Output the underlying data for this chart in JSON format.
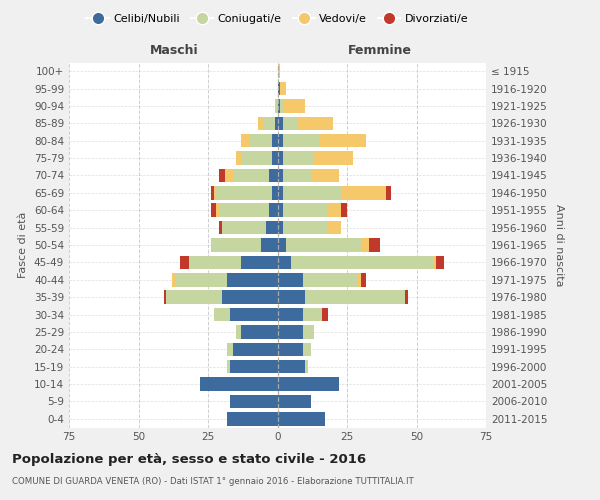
{
  "age_groups": [
    "0-4",
    "5-9",
    "10-14",
    "15-19",
    "20-24",
    "25-29",
    "30-34",
    "35-39",
    "40-44",
    "45-49",
    "50-54",
    "55-59",
    "60-64",
    "65-69",
    "70-74",
    "75-79",
    "80-84",
    "85-89",
    "90-94",
    "95-99",
    "100+"
  ],
  "birth_years": [
    "2011-2015",
    "2006-2010",
    "2001-2005",
    "1996-2000",
    "1991-1995",
    "1986-1990",
    "1981-1985",
    "1976-1980",
    "1971-1975",
    "1966-1970",
    "1961-1965",
    "1956-1960",
    "1951-1955",
    "1946-1950",
    "1941-1945",
    "1936-1940",
    "1931-1935",
    "1926-1930",
    "1921-1925",
    "1916-1920",
    "≤ 1915"
  ],
  "males": {
    "celibe": [
      18,
      17,
      28,
      17,
      16,
      13,
      17,
      20,
      18,
      13,
      6,
      4,
      3,
      2,
      3,
      2,
      2,
      1,
      0,
      0,
      0
    ],
    "coniugato": [
      0,
      0,
      0,
      1,
      2,
      2,
      6,
      20,
      19,
      19,
      18,
      16,
      18,
      20,
      13,
      11,
      8,
      4,
      1,
      0,
      0
    ],
    "vedovo": [
      0,
      0,
      0,
      0,
      0,
      0,
      0,
      0,
      1,
      0,
      0,
      0,
      1,
      1,
      3,
      2,
      3,
      2,
      0,
      0,
      0
    ],
    "divorziato": [
      0,
      0,
      0,
      0,
      0,
      0,
      0,
      1,
      0,
      3,
      0,
      1,
      2,
      1,
      2,
      0,
      0,
      0,
      0,
      0,
      0
    ]
  },
  "females": {
    "nubile": [
      17,
      12,
      22,
      10,
      9,
      9,
      9,
      10,
      9,
      5,
      3,
      2,
      2,
      2,
      2,
      2,
      2,
      2,
      1,
      1,
      0
    ],
    "coniugata": [
      0,
      0,
      0,
      1,
      3,
      4,
      7,
      36,
      20,
      51,
      27,
      16,
      16,
      21,
      10,
      11,
      13,
      5,
      1,
      0,
      0
    ],
    "vedova": [
      0,
      0,
      0,
      0,
      0,
      0,
      0,
      0,
      1,
      1,
      3,
      5,
      5,
      16,
      10,
      14,
      17,
      13,
      8,
      2,
      1
    ],
    "divorziata": [
      0,
      0,
      0,
      0,
      0,
      0,
      2,
      1,
      2,
      3,
      4,
      0,
      2,
      2,
      0,
      0,
      0,
      0,
      0,
      0,
      0
    ]
  },
  "colors": {
    "celibe": "#3d6b9e",
    "coniugato": "#c5d6a0",
    "vedovo": "#f5c96a",
    "divorziato": "#c0392b"
  },
  "xlim": 75,
  "title": "Popolazione per età, sesso e stato civile - 2016",
  "subtitle": "COMUNE DI GUARDA VENETA (RO) - Dati ISTAT 1° gennaio 2016 - Elaborazione TUTTITALIA.IT",
  "ylabel_left": "Fasce di età",
  "ylabel_right": "Anni di nascita",
  "xlabel_left": "Maschi",
  "xlabel_right": "Femmine",
  "bg_color": "#f0f0f0",
  "plot_bg": "#ffffff",
  "legend_labels": [
    "Celibi/Nubili",
    "Coniugati/e",
    "Vedovi/e",
    "Divorziati/e"
  ]
}
